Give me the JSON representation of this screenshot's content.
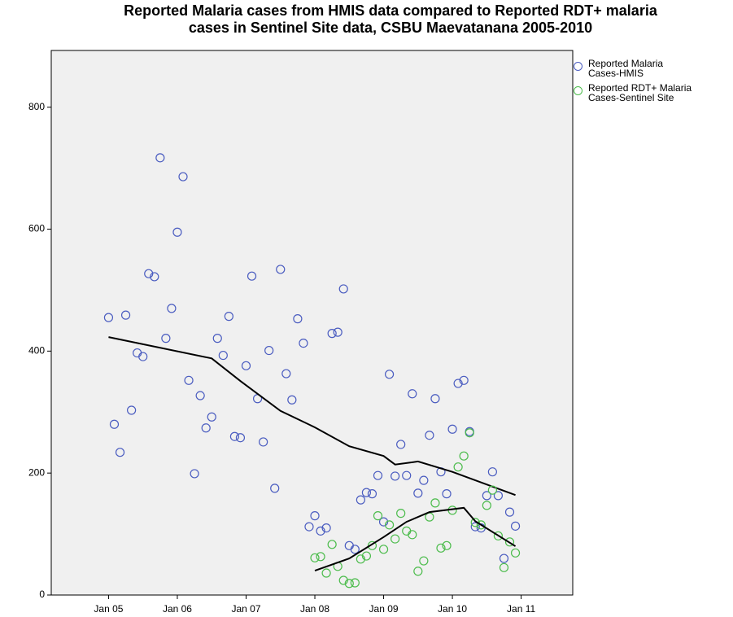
{
  "chart_data": {
    "type": "scatter",
    "title": [
      "Reported Malaria cases from HMIS data compared to Reported RDT+ malaria",
      "cases in Sentinel Site data, CSBU Maevatanana 2005-2010"
    ],
    "xlim": [
      "2004-03",
      "2011-10"
    ],
    "xticks": [
      {
        "value": "2005-01",
        "label": "Jan 05"
      },
      {
        "value": "2006-01",
        "label": "Jan 06"
      },
      {
        "value": "2007-01",
        "label": "Jan 07"
      },
      {
        "value": "2008-01",
        "label": "Jan 08"
      },
      {
        "value": "2009-01",
        "label": "Jan 09"
      },
      {
        "value": "2010-01",
        "label": "Jan 10"
      },
      {
        "value": "2011-01",
        "label": "Jan 11"
      }
    ],
    "ylim": [
      0,
      893
    ],
    "yticks": [
      0,
      200,
      400,
      600,
      800
    ],
    "grid": false,
    "legend": "right",
    "series": [
      {
        "name": "Reported Malaria Cases-HMIS",
        "color": "#4a5cc0",
        "x": [
          "2005-01",
          "2005-02",
          "2005-03",
          "2005-04",
          "2005-05",
          "2005-06",
          "2005-07",
          "2005-08",
          "2005-09",
          "2005-10",
          "2005-11",
          "2005-12",
          "2006-01",
          "2006-02",
          "2006-03",
          "2006-04",
          "2006-05",
          "2006-06",
          "2006-07",
          "2006-08",
          "2006-09",
          "2006-10",
          "2006-11",
          "2006-12",
          "2007-01",
          "2007-02",
          "2007-03",
          "2007-04",
          "2007-05",
          "2007-06",
          "2007-07",
          "2007-08",
          "2007-09",
          "2007-10",
          "2007-11",
          "2007-12",
          "2008-01",
          "2008-02",
          "2008-03",
          "2008-04",
          "2008-05",
          "2008-06",
          "2008-07",
          "2008-08",
          "2008-09",
          "2008-10",
          "2008-11",
          "2008-12",
          "2009-01",
          "2009-02",
          "2009-03",
          "2009-04",
          "2009-05",
          "2009-06",
          "2009-07",
          "2009-08",
          "2009-09",
          "2009-10",
          "2009-11",
          "2009-12",
          "2010-01",
          "2010-02",
          "2010-03",
          "2010-04",
          "2010-05",
          "2010-06",
          "2010-07",
          "2010-08",
          "2010-09",
          "2010-10",
          "2010-11",
          "2010-12"
        ],
        "values": [
          455,
          280,
          234,
          459,
          303,
          397,
          391,
          527,
          522,
          717,
          421,
          470,
          595,
          686,
          352,
          199,
          327,
          274,
          292,
          421,
          393,
          457,
          260,
          258,
          376,
          523,
          322,
          251,
          401,
          175,
          534,
          363,
          320,
          453,
          413,
          112,
          130,
          105,
          110,
          429,
          431,
          502,
          81,
          75,
          156,
          168,
          166,
          196,
          120,
          362,
          195,
          247,
          196,
          330,
          167,
          188,
          262,
          322,
          202,
          166,
          272,
          347,
          352,
          268,
          112,
          110,
          163,
          202,
          163,
          60,
          136,
          113
        ],
        "fit_x": [
          "2005-01",
          "2006-07",
          "2006-12",
          "2007-07",
          "2008-01",
          "2008-07",
          "2009-01",
          "2009-03",
          "2009-07",
          "2010-01",
          "2010-12"
        ],
        "fit_values": [
          423,
          388,
          351,
          302,
          275,
          244,
          228,
          214,
          219,
          202,
          164
        ]
      },
      {
        "name": "Reported RDT+ Malaria Cases-Sentinel Site",
        "color": "#4cbc4c",
        "x": [
          "2008-01",
          "2008-02",
          "2008-03",
          "2008-04",
          "2008-05",
          "2008-06",
          "2008-07",
          "2008-08",
          "2008-09",
          "2008-10",
          "2008-11",
          "2008-12",
          "2009-01",
          "2009-02",
          "2009-03",
          "2009-04",
          "2009-05",
          "2009-06",
          "2009-07",
          "2009-08",
          "2009-09",
          "2009-10",
          "2009-11",
          "2009-12",
          "2010-01",
          "2010-02",
          "2010-03",
          "2010-04",
          "2010-05",
          "2010-06",
          "2010-07",
          "2010-08",
          "2010-09",
          "2010-10",
          "2010-11",
          "2010-12"
        ],
        "values": [
          61,
          63,
          36,
          83,
          47,
          24,
          19,
          20,
          59,
          64,
          81,
          130,
          75,
          115,
          92,
          134,
          105,
          99,
          39,
          56,
          128,
          151,
          77,
          81,
          139,
          210,
          228,
          266,
          119,
          115,
          147,
          172,
          97,
          45,
          87,
          69
        ],
        "fit_x": [
          "2008-01",
          "2008-07",
          "2009-01",
          "2009-05",
          "2009-09",
          "2010-03",
          "2010-05",
          "2010-12"
        ],
        "fit_values": [
          40,
          60,
          95,
          120,
          136,
          143,
          121,
          80
        ]
      }
    ]
  }
}
